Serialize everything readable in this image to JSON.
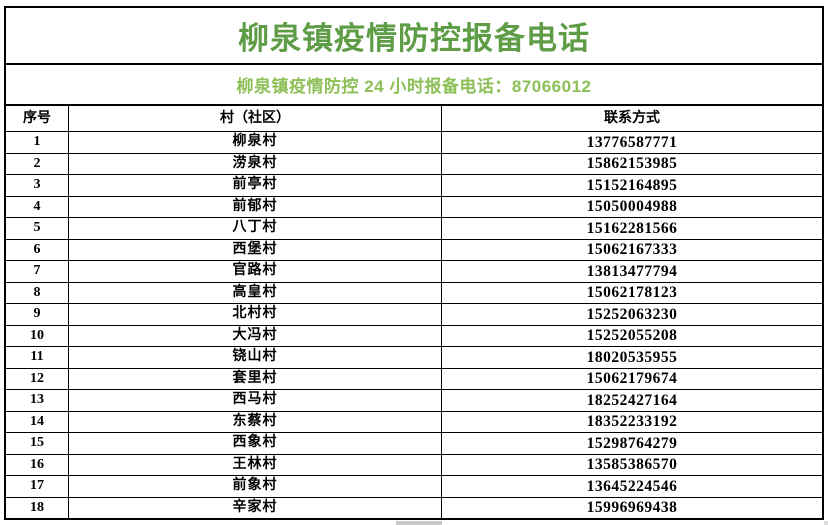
{
  "title": "柳泉镇疫情防控报备电话",
  "subtitle": "柳泉镇疫情防控 24 小时报备电话：87066012",
  "colors": {
    "title_green": "#5e9c46",
    "subtitle_green": "#8dbf57",
    "border_black": "#000000",
    "text_black": "#000000"
  },
  "table": {
    "headers": [
      "序号",
      "村（社区）",
      "联系方式"
    ],
    "rows": [
      {
        "no": "1",
        "village": "柳泉村",
        "phone": "13776587771"
      },
      {
        "no": "2",
        "village": "涝泉村",
        "phone": "15862153985"
      },
      {
        "no": "3",
        "village": "前亭村",
        "phone": "15152164895"
      },
      {
        "no": "4",
        "village": "前郁村",
        "phone": "15050004988"
      },
      {
        "no": "5",
        "village": "八丁村",
        "phone": "15162281566"
      },
      {
        "no": "6",
        "village": "西堡村",
        "phone": "15062167333"
      },
      {
        "no": "7",
        "village": "官路村",
        "phone": "13813477794"
      },
      {
        "no": "8",
        "village": "高皇村",
        "phone": "15062178123"
      },
      {
        "no": "9",
        "village": "北村村",
        "phone": "15252063230"
      },
      {
        "no": "10",
        "village": "大冯村",
        "phone": "15252055208"
      },
      {
        "no": "11",
        "village": "铙山村",
        "phone": "18020535955"
      },
      {
        "no": "12",
        "village": "套里村",
        "phone": "15062179674"
      },
      {
        "no": "13",
        "village": "西马村",
        "phone": "18252427164"
      },
      {
        "no": "14",
        "village": "东蔡村",
        "phone": "18352233192"
      },
      {
        "no": "15",
        "village": "西象村",
        "phone": "15298764279"
      },
      {
        "no": "16",
        "village": "王林村",
        "phone": "13585386570"
      },
      {
        "no": "17",
        "village": "前象村",
        "phone": "13645224546"
      },
      {
        "no": "18",
        "village": "辛家村",
        "phone": "15996969438"
      }
    ]
  }
}
